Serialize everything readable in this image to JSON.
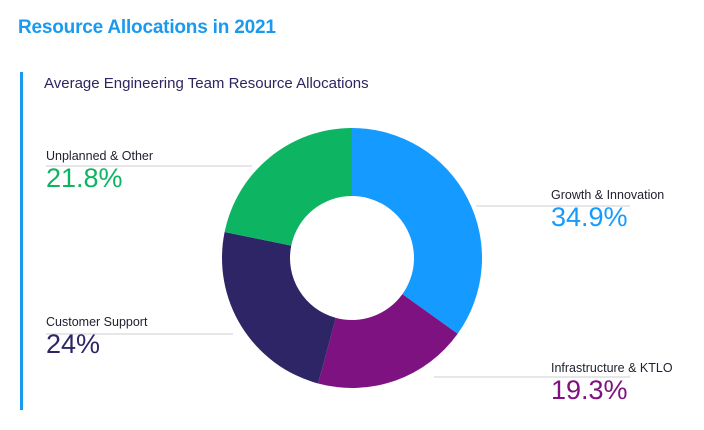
{
  "page_title": "Resource Allocations in 2021",
  "chart_data": {
    "type": "pie",
    "variant": "donut",
    "title": "Average Engineering Team Resource Allocations",
    "slices": [
      {
        "label": "Growth & Innovation",
        "value": 34.9,
        "value_text": "34.9%",
        "color": "#159bff"
      },
      {
        "label": "Infrastructure & KTLO",
        "value": 19.3,
        "value_text": "19.3%",
        "color": "#7e1280"
      },
      {
        "label": "Customer Support",
        "value": 24,
        "value_text": "24%",
        "color": "#2d2566"
      },
      {
        "label": "Unplanned & Other",
        "value": 21.8,
        "value_text": "21.8%",
        "color": "#0db563"
      }
    ],
    "start": "top",
    "direction": "clockwise",
    "legend": "labels beside slices"
  }
}
